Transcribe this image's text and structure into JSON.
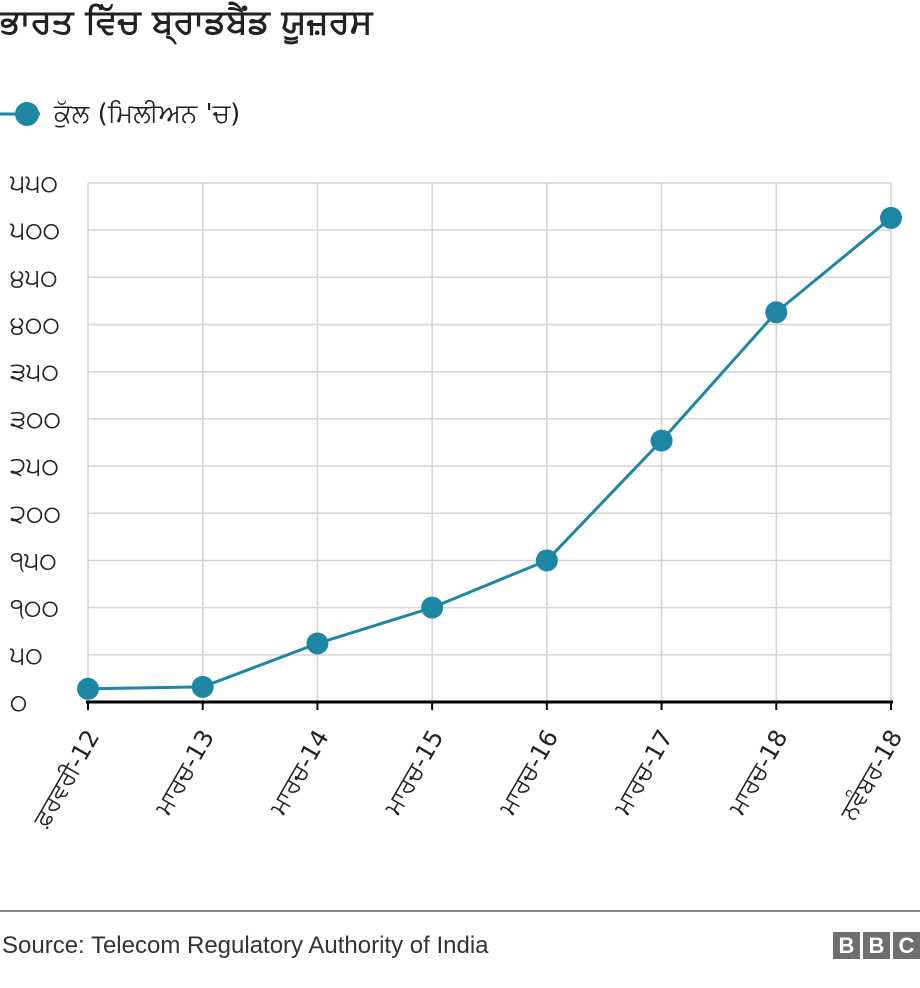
{
  "title": "ਭਾਰਤ ਵਿੱਚ ਬ੍ਰਾਡਬੈਂਡ ਯੂਜ਼ਰਸ",
  "legend": {
    "label": "ਕੁੱਲ (ਮਿਲੀਅਨ 'ਚ)"
  },
  "source": "Source: Telecom Regulatory Authority of India",
  "logo": {
    "letters": [
      "B",
      "B",
      "C"
    ]
  },
  "colors": {
    "series": "#1d87a3",
    "grid": "#d4d4d4",
    "axis": "#000000",
    "text": "#222222",
    "logo": "#6e6e6e"
  },
  "chart_data": {
    "type": "line",
    "title": "ਭਾਰਤ ਵਿੱਚ ਬ੍ਰਾਡਬੈਂਡ ਯੂਜ਼ਰਸ",
    "xlabel": "",
    "ylabel": "",
    "categories": [
      "ਫ਼ਰਵਰੀ-12",
      "ਮਾਰਚ-13",
      "ਮਾਰਚ-14",
      "ਮਾਰਚ-15",
      "ਮਾਰਚ-16",
      "ਮਾਰਚ-17",
      "ਮਾਰਚ-18",
      "ਨਵੰਬਰ-18"
    ],
    "series": [
      {
        "name": "ਕੁੱਲ (ਮਿਲੀਅਨ 'ਚ)",
        "values": [
          14,
          16,
          62,
          100,
          150,
          277,
          413,
          513
        ]
      }
    ],
    "ylim": [
      0,
      550
    ],
    "yticks": [
      0,
      50,
      100,
      150,
      200,
      250,
      300,
      350,
      400,
      450,
      500,
      550
    ],
    "ytick_labels": [
      "੦",
      "੫੦",
      "੧੦੦",
      "੧੫੦",
      "੨੦੦",
      "੨੫੦",
      "੩੦੦",
      "੩੫੦",
      "੪੦੦",
      "੪੫੦",
      "੫੦੦",
      "੫੫੦"
    ],
    "grid": true,
    "legend_position": "top-left"
  }
}
